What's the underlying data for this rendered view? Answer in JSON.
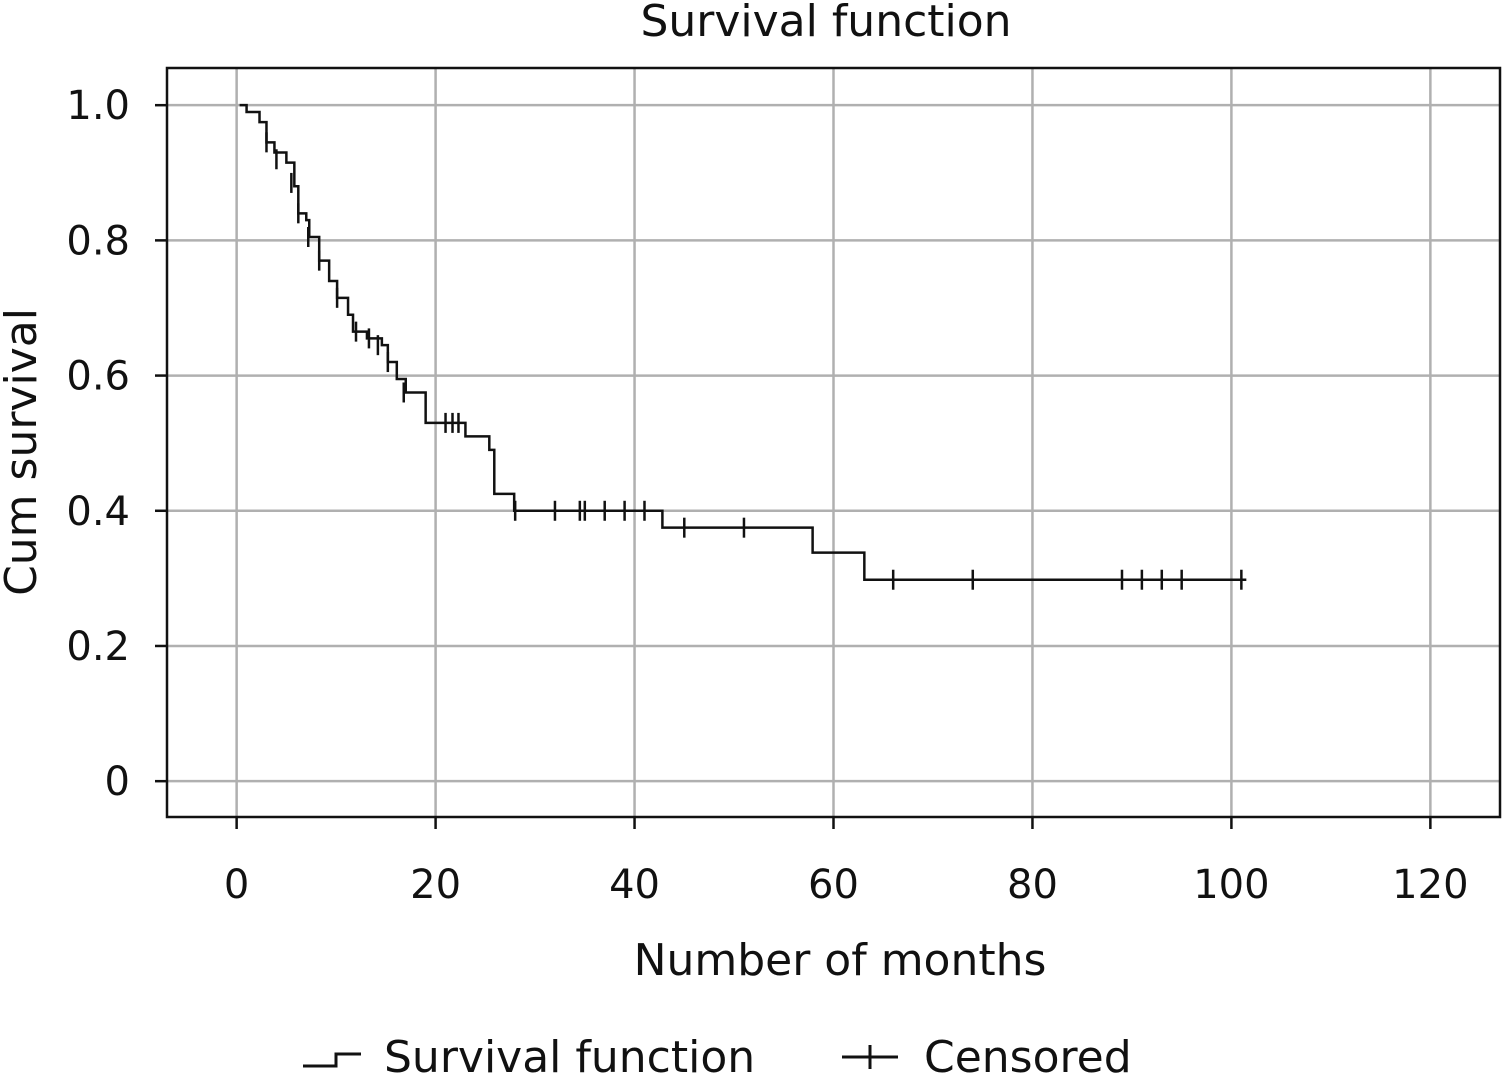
{
  "chart_data": {
    "type": "line",
    "title": "Survival function",
    "xlabel": "Number of months",
    "ylabel": "Cum survival",
    "xlim": [
      -7,
      127
    ],
    "ylim": [
      -0.053,
      1.055
    ],
    "x_ticks": [
      0,
      20,
      40,
      60,
      80,
      100,
      120
    ],
    "y_ticks": [
      0,
      0.2,
      0.4,
      0.6,
      0.8,
      1.0
    ],
    "x_tick_labels": [
      "0",
      "20",
      "40",
      "60",
      "80",
      "100",
      "120"
    ],
    "y_tick_labels": [
      "0",
      "0.2",
      "0.4",
      "0.6",
      "0.8",
      "1.0"
    ],
    "grid": true,
    "legend_position": "bottom",
    "line_color": "#111111",
    "grid_color": "#b0b0b0",
    "series": [
      {
        "name": "Survival function",
        "kind": "step",
        "points": [
          [
            0.3,
            1.0
          ],
          [
            1.0,
            0.99
          ],
          [
            2.3,
            0.975
          ],
          [
            3.0,
            0.945
          ],
          [
            3.8,
            0.93
          ],
          [
            5.0,
            0.915
          ],
          [
            5.8,
            0.88
          ],
          [
            6.2,
            0.84
          ],
          [
            7.0,
            0.83
          ],
          [
            7.3,
            0.805
          ],
          [
            8.3,
            0.77
          ],
          [
            9.3,
            0.74
          ],
          [
            10.1,
            0.715
          ],
          [
            11.2,
            0.69
          ],
          [
            11.7,
            0.665
          ],
          [
            13.1,
            0.655
          ],
          [
            14.6,
            0.645
          ],
          [
            15.2,
            0.62
          ],
          [
            16.1,
            0.595
          ],
          [
            17.0,
            0.575
          ],
          [
            19.0,
            0.53
          ],
          [
            23.0,
            0.51
          ],
          [
            25.4,
            0.49
          ],
          [
            25.9,
            0.425
          ],
          [
            27.9,
            0.4
          ],
          [
            42.8,
            0.375
          ],
          [
            57.9,
            0.338
          ],
          [
            63.1,
            0.298
          ],
          [
            101.5,
            0.298
          ]
        ]
      },
      {
        "name": "Censored",
        "kind": "markers",
        "points": [
          [
            3.0,
            0.945
          ],
          [
            4.0,
            0.92
          ],
          [
            5.5,
            0.885
          ],
          [
            6.2,
            0.84
          ],
          [
            7.2,
            0.805
          ],
          [
            8.3,
            0.77
          ],
          [
            10.1,
            0.715
          ],
          [
            12.0,
            0.665
          ],
          [
            13.3,
            0.655
          ],
          [
            14.2,
            0.645
          ],
          [
            15.2,
            0.62
          ],
          [
            16.8,
            0.575
          ],
          [
            21.0,
            0.53
          ],
          [
            21.7,
            0.53
          ],
          [
            22.3,
            0.53
          ],
          [
            28.0,
            0.4
          ],
          [
            32.0,
            0.4
          ],
          [
            34.5,
            0.4
          ],
          [
            35.0,
            0.4
          ],
          [
            37.0,
            0.4
          ],
          [
            39.0,
            0.4
          ],
          [
            41.0,
            0.4
          ],
          [
            45.0,
            0.375
          ],
          [
            51.0,
            0.375
          ],
          [
            66.0,
            0.298
          ],
          [
            74.0,
            0.298
          ],
          [
            89.0,
            0.298
          ],
          [
            91.0,
            0.298
          ],
          [
            93.0,
            0.298
          ],
          [
            95.0,
            0.298
          ],
          [
            101.0,
            0.298
          ]
        ]
      }
    ]
  }
}
